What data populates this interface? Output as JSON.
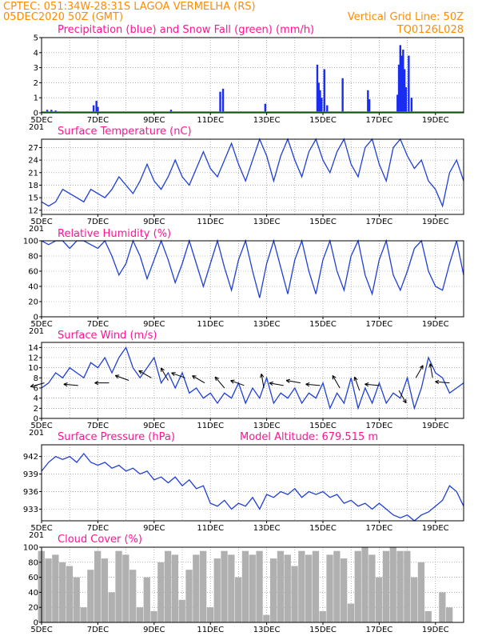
{
  "header": {
    "line1": "CPTEC:   051:34W-28:31S   LAGOA VERMELHA (RS)",
    "line2_left": "05DEC2020 50Z (GMT)",
    "line2_right": "Vertical Grid Line: 50Z",
    "code": "TQ0126L028"
  },
  "colors": {
    "header": "#ff8c00",
    "panel_title": "#ff1493",
    "line": "#1f3fd6",
    "precip": "#1a2cf0",
    "snow": "#2e9e2e",
    "cloud": "#b0b0b0",
    "arrow": "#000000"
  },
  "x_axis": {
    "ticks": [
      "5DEC",
      "7DEC",
      "9DEC",
      "11DEC",
      "13DEC",
      "15DEC",
      "17DEC",
      "19DEC"
    ],
    "range_days": [
      5,
      20
    ],
    "year_stub": "201"
  },
  "chart_data": [
    {
      "type": "bar",
      "title": "Precipitation (blue) and Snow Fall (green) (mm/h)",
      "ylim": [
        0,
        5
      ],
      "yticks": [
        0,
        1,
        2,
        3,
        4,
        5
      ],
      "series": [
        {
          "name": "Precipitation",
          "x": [
            5.2,
            5.35,
            5.5,
            6.85,
            6.95,
            7.0,
            9.6,
            11.35,
            11.45,
            12.95,
            14.8,
            14.85,
            14.9,
            14.95,
            15.05,
            15.15,
            15.7,
            16.6,
            16.65,
            17.65,
            17.7,
            17.75,
            17.8,
            17.85,
            17.9,
            17.95,
            18.05,
            18.15
          ],
          "values": [
            0.2,
            0.2,
            0.15,
            0.5,
            0.8,
            0.4,
            0.2,
            1.4,
            1.6,
            0.6,
            3.2,
            2.0,
            1.5,
            1.0,
            2.9,
            0.5,
            2.3,
            1.5,
            0.9,
            1.2,
            3.2,
            4.5,
            3.8,
            4.2,
            2.9,
            1.7,
            3.8,
            1.0
          ]
        },
        {
          "name": "Snow Fall",
          "x": [],
          "values": []
        }
      ]
    },
    {
      "type": "line",
      "title": "Surface Temperature (nC)",
      "ylim": [
        11,
        29
      ],
      "yticks": [
        12,
        15,
        18,
        21,
        24,
        27
      ],
      "x": [
        5.0,
        5.25,
        5.5,
        5.75,
        6.0,
        6.25,
        6.5,
        6.75,
        7.0,
        7.25,
        7.5,
        7.75,
        8.0,
        8.25,
        8.5,
        8.75,
        9.0,
        9.25,
        9.5,
        9.75,
        10.0,
        10.25,
        10.5,
        10.75,
        11.0,
        11.25,
        11.5,
        11.75,
        12.0,
        12.25,
        12.5,
        12.75,
        13.0,
        13.25,
        13.5,
        13.75,
        14.0,
        14.25,
        14.5,
        14.75,
        15.0,
        15.25,
        15.5,
        15.75,
        16.0,
        16.25,
        16.5,
        16.75,
        17.0,
        17.25,
        17.5,
        17.75,
        18.0,
        18.25,
        18.5,
        18.75,
        19.0,
        19.25,
        19.5,
        19.75,
        20.0
      ],
      "values": [
        14,
        13,
        14,
        17,
        16,
        15,
        14,
        17,
        16,
        15,
        17,
        20,
        18,
        16,
        19,
        23,
        19,
        17,
        20,
        24,
        20,
        18,
        22,
        26,
        22,
        20,
        24,
        28,
        23,
        19,
        24,
        29,
        25,
        19,
        25,
        29,
        24,
        20,
        26,
        29,
        24,
        21,
        26,
        29,
        23,
        20,
        27,
        29,
        23,
        19,
        27,
        29,
        25,
        22,
        24,
        19,
        17,
        13,
        21,
        24,
        19
      ]
    },
    {
      "type": "line",
      "title": "Relative Humidity (%)",
      "ylim": [
        0,
        100
      ],
      "yticks": [
        0,
        20,
        40,
        60,
        80,
        100
      ],
      "x": [
        5.0,
        5.25,
        5.5,
        5.75,
        6.0,
        6.25,
        6.5,
        6.75,
        7.0,
        7.25,
        7.5,
        7.75,
        8.0,
        8.25,
        8.5,
        8.75,
        9.0,
        9.25,
        9.5,
        9.75,
        10.0,
        10.25,
        10.5,
        10.75,
        11.0,
        11.25,
        11.5,
        11.75,
        12.0,
        12.25,
        12.5,
        12.75,
        13.0,
        13.25,
        13.5,
        13.75,
        14.0,
        14.25,
        14.5,
        14.75,
        15.0,
        15.25,
        15.5,
        15.75,
        16.0,
        16.25,
        16.5,
        16.75,
        17.0,
        17.25,
        17.5,
        17.75,
        18.0,
        18.25,
        18.5,
        18.75,
        19.0,
        19.25,
        19.5,
        19.75,
        20.0
      ],
      "values": [
        100,
        95,
        100,
        100,
        90,
        100,
        100,
        95,
        90,
        100,
        80,
        55,
        70,
        100,
        80,
        50,
        75,
        100,
        75,
        45,
        70,
        100,
        70,
        40,
        70,
        100,
        65,
        35,
        75,
        100,
        60,
        25,
        70,
        100,
        65,
        30,
        75,
        100,
        60,
        30,
        75,
        100,
        60,
        35,
        80,
        100,
        55,
        30,
        75,
        100,
        55,
        35,
        60,
        90,
        100,
        60,
        40,
        35,
        70,
        100,
        55
      ]
    },
    {
      "type": "line",
      "title": "Surface Wind (m/s)",
      "ylim": [
        0,
        15
      ],
      "yticks": [
        0,
        2,
        4,
        6,
        8,
        10,
        12,
        14
      ],
      "x": [
        5.0,
        5.25,
        5.5,
        5.75,
        6.0,
        6.25,
        6.5,
        6.75,
        7.0,
        7.25,
        7.5,
        7.75,
        8.0,
        8.25,
        8.5,
        8.75,
        9.0,
        9.25,
        9.5,
        9.75,
        10.0,
        10.25,
        10.5,
        10.75,
        11.0,
        11.25,
        11.5,
        11.75,
        12.0,
        12.25,
        12.5,
        12.75,
        13.0,
        13.25,
        13.5,
        13.75,
        14.0,
        14.25,
        14.5,
        14.75,
        15.0,
        15.25,
        15.5,
        15.75,
        16.0,
        16.25,
        16.5,
        16.75,
        17.0,
        17.25,
        17.5,
        17.75,
        18.0,
        18.25,
        18.5,
        18.75,
        19.0,
        19.25,
        19.5,
        19.75,
        20.0
      ],
      "values": [
        6,
        7,
        9,
        8,
        10,
        9,
        8,
        11,
        10,
        12,
        9,
        12,
        14,
        10,
        8,
        10,
        12,
        7,
        9,
        6,
        9,
        5,
        6,
        4,
        5,
        3,
        5,
        4,
        7,
        3,
        6,
        4,
        8,
        3,
        5,
        4,
        6,
        3,
        5,
        4,
        7,
        2,
        5,
        3,
        8,
        2,
        6,
        3,
        7,
        3,
        5,
        4,
        8,
        2,
        6,
        12,
        9,
        8,
        5,
        6,
        7
      ],
      "arrows": [
        {
          "x": 5.1,
          "speed": 7,
          "dir_deg": 195
        },
        {
          "x": 6.3,
          "speed": 6.5,
          "dir_deg": 175
        },
        {
          "x": 7.4,
          "speed": 7,
          "dir_deg": 180
        },
        {
          "x": 8.1,
          "speed": 7.5,
          "dir_deg": 160
        },
        {
          "x": 8.9,
          "speed": 8,
          "dir_deg": 150
        },
        {
          "x": 9.5,
          "speed": 7.5,
          "dir_deg": 120
        },
        {
          "x": 10.1,
          "speed": 8,
          "dir_deg": 160
        },
        {
          "x": 10.8,
          "speed": 7,
          "dir_deg": 150
        },
        {
          "x": 11.5,
          "speed": 6,
          "dir_deg": 130
        },
        {
          "x": 12.2,
          "speed": 6.5,
          "dir_deg": 160
        },
        {
          "x": 12.9,
          "speed": 6,
          "dir_deg": 100
        },
        {
          "x": 13.6,
          "speed": 6.5,
          "dir_deg": 170
        },
        {
          "x": 14.2,
          "speed": 7,
          "dir_deg": 170
        },
        {
          "x": 14.9,
          "speed": 6.5,
          "dir_deg": 175
        },
        {
          "x": 15.6,
          "speed": 6,
          "dir_deg": 120
        },
        {
          "x": 16.3,
          "speed": 5.5,
          "dir_deg": 110
        },
        {
          "x": 17.0,
          "speed": 6.5,
          "dir_deg": 175
        },
        {
          "x": 17.7,
          "speed": 5.5,
          "dir_deg": 300
        },
        {
          "x": 18.3,
          "speed": 8,
          "dir_deg": 60
        },
        {
          "x": 18.9,
          "speed": 8,
          "dir_deg": 100
        },
        {
          "x": 19.5,
          "speed": 7,
          "dir_deg": 175
        }
      ]
    },
    {
      "type": "line",
      "title": "Surface Pressure (hPa)",
      "annotation": "Model Altitude: 679.515  m",
      "ylim": [
        931,
        944
      ],
      "yticks": [
        933,
        936,
        939,
        942
      ],
      "x": [
        5.0,
        5.25,
        5.5,
        5.75,
        6.0,
        6.25,
        6.5,
        6.75,
        7.0,
        7.25,
        7.5,
        7.75,
        8.0,
        8.25,
        8.5,
        8.75,
        9.0,
        9.25,
        9.5,
        9.75,
        10.0,
        10.25,
        10.5,
        10.75,
        11.0,
        11.25,
        11.5,
        11.75,
        12.0,
        12.25,
        12.5,
        12.75,
        13.0,
        13.25,
        13.5,
        13.75,
        14.0,
        14.25,
        14.5,
        14.75,
        15.0,
        15.25,
        15.5,
        15.75,
        16.0,
        16.25,
        16.5,
        16.75,
        17.0,
        17.25,
        17.5,
        17.75,
        18.0,
        18.25,
        18.5,
        18.75,
        19.0,
        19.25,
        19.5,
        19.75,
        20.0
      ],
      "values": [
        939.5,
        941,
        942,
        941.5,
        942,
        941,
        942.5,
        941,
        940.5,
        941,
        940,
        940.5,
        939.5,
        940,
        939,
        939.5,
        938,
        938.5,
        937.5,
        938.5,
        937,
        938,
        936.5,
        937,
        934,
        933.5,
        934.5,
        933,
        934,
        933.5,
        935,
        933,
        935.5,
        935,
        936,
        935.5,
        936.5,
        935,
        936,
        935.5,
        936,
        935,
        935.5,
        934,
        934.5,
        933.5,
        934,
        933,
        934,
        933,
        932,
        931.5,
        932,
        931,
        932,
        932.5,
        933.5,
        934.5,
        937,
        936,
        933.5
      ]
    },
    {
      "type": "bar",
      "title": "Cloud Cover (%)",
      "ylim": [
        0,
        100
      ],
      "yticks": [
        0,
        20,
        40,
        60,
        80,
        100
      ],
      "x": [
        5.0,
        5.25,
        5.5,
        5.75,
        6.0,
        6.25,
        6.5,
        6.75,
        7.0,
        7.25,
        7.5,
        7.75,
        8.0,
        8.25,
        8.5,
        8.75,
        9.0,
        9.25,
        9.5,
        9.75,
        10.0,
        10.25,
        10.5,
        10.75,
        11.0,
        11.25,
        11.5,
        11.75,
        12.0,
        12.25,
        12.5,
        12.75,
        13.0,
        13.25,
        13.5,
        13.75,
        14.0,
        14.25,
        14.5,
        14.75,
        15.0,
        15.25,
        15.5,
        15.75,
        16.0,
        16.25,
        16.5,
        16.75,
        17.0,
        17.25,
        17.5,
        17.75,
        18.0,
        18.25,
        18.5,
        18.75,
        19.0,
        19.25,
        19.5,
        19.75,
        20.0
      ],
      "values": [
        95,
        85,
        90,
        80,
        75,
        60,
        20,
        70,
        95,
        85,
        40,
        95,
        90,
        70,
        20,
        60,
        15,
        80,
        95,
        90,
        30,
        70,
        90,
        95,
        20,
        85,
        95,
        90,
        60,
        95,
        90,
        95,
        10,
        85,
        95,
        90,
        75,
        95,
        90,
        95,
        15,
        90,
        95,
        85,
        25,
        95,
        100,
        90,
        60,
        95,
        100,
        95,
        95,
        60,
        80,
        15,
        0,
        40,
        20,
        0,
        0
      ]
    }
  ]
}
